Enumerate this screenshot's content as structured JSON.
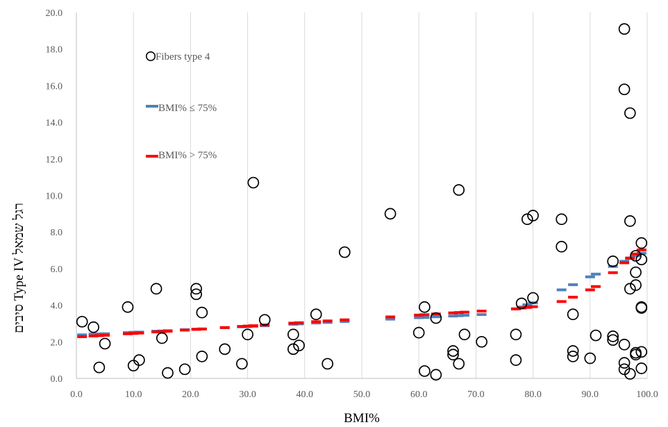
{
  "chart_data": {
    "type": "scatter",
    "xlabel": "BMI%",
    "ylabel": "סיבים  Type IV רגל שמאל",
    "xlim": [
      0,
      100
    ],
    "ylim": [
      0,
      20
    ],
    "x_ticks": [
      "0.0",
      "10.0",
      "20.0",
      "30.0",
      "40.0",
      "50.0",
      "60.0",
      "70.0",
      "80.0",
      "90.0",
      "100.0"
    ],
    "y_ticks": [
      "0.0",
      "2.0",
      "4.0",
      "6.0",
      "8.0",
      "10.0",
      "12.0",
      "14.0",
      "16.0",
      "18.0",
      "20.0"
    ],
    "grid": "vertical",
    "legend_position": "top-left",
    "colors": {
      "points": "#000000",
      "series_le75": "#4f81bd",
      "series_gt75": "#ff0000",
      "grid": "#d9d9d9"
    },
    "series": [
      {
        "name": "Fibers type 4",
        "kind": "scatter",
        "points": [
          [
            1,
            3.1
          ],
          [
            3,
            2.8
          ],
          [
            4,
            0.6
          ],
          [
            5,
            1.9
          ],
          [
            9,
            3.9
          ],
          [
            10,
            0.7
          ],
          [
            11,
            1.0
          ],
          [
            14,
            4.9
          ],
          [
            15,
            2.2
          ],
          [
            16,
            0.3
          ],
          [
            19,
            0.5
          ],
          [
            21,
            4.9
          ],
          [
            21,
            4.6
          ],
          [
            22,
            3.6
          ],
          [
            22,
            1.2
          ],
          [
            26,
            1.6
          ],
          [
            29,
            0.8
          ],
          [
            30,
            2.4
          ],
          [
            31,
            10.7
          ],
          [
            33,
            3.2
          ],
          [
            38,
            2.4
          ],
          [
            38,
            1.6
          ],
          [
            39,
            1.8
          ],
          [
            42,
            3.5
          ],
          [
            44,
            0.8
          ],
          [
            47,
            6.9
          ],
          [
            55,
            9.0
          ],
          [
            60,
            2.5
          ],
          [
            61,
            3.9
          ],
          [
            61,
            0.4
          ],
          [
            63,
            3.3
          ],
          [
            63,
            0.2
          ],
          [
            66,
            1.5
          ],
          [
            66,
            1.3
          ],
          [
            67,
            10.3
          ],
          [
            67,
            0.8
          ],
          [
            68,
            2.4
          ],
          [
            71,
            2.0
          ],
          [
            77,
            2.4
          ],
          [
            77,
            1.0
          ],
          [
            78,
            4.1
          ],
          [
            79,
            8.7
          ],
          [
            80,
            8.9
          ],
          [
            80,
            4.4
          ],
          [
            85,
            8.7
          ],
          [
            85,
            7.2
          ],
          [
            87,
            3.5
          ],
          [
            87,
            1.5
          ],
          [
            87,
            1.2
          ],
          [
            90,
            1.1
          ],
          [
            91,
            2.35
          ],
          [
            94,
            6.4
          ],
          [
            94,
            2.3
          ],
          [
            94,
            2.1
          ],
          [
            96,
            19.1
          ],
          [
            96,
            15.8
          ],
          [
            96,
            1.85
          ],
          [
            96,
            0.85
          ],
          [
            96,
            0.5
          ],
          [
            97,
            14.5
          ],
          [
            97,
            8.6
          ],
          [
            97,
            4.9
          ],
          [
            97,
            0.25
          ],
          [
            98,
            6.7
          ],
          [
            98,
            5.8
          ],
          [
            98,
            5.1
          ],
          [
            98,
            1.4
          ],
          [
            98,
            1.3
          ],
          [
            99,
            7.4
          ],
          [
            99,
            6.5
          ],
          [
            99,
            3.9
          ],
          [
            99,
            3.85
          ],
          [
            99,
            1.45
          ],
          [
            99,
            0.55
          ]
        ]
      },
      {
        "name": "BMI% ≤ 75%",
        "kind": "trend",
        "points": [
          [
            1,
            2.38
          ],
          [
            3,
            2.42
          ],
          [
            4,
            2.43
          ],
          [
            5,
            2.44
          ],
          [
            9,
            2.5
          ],
          [
            10,
            2.52
          ],
          [
            11,
            2.53
          ],
          [
            14,
            2.58
          ],
          [
            15,
            2.59
          ],
          [
            16,
            2.61
          ],
          [
            19,
            2.66
          ],
          [
            21,
            2.69
          ],
          [
            22,
            2.7
          ],
          [
            26,
            2.77
          ],
          [
            29,
            2.82
          ],
          [
            30,
            2.83
          ],
          [
            31,
            2.85
          ],
          [
            33,
            2.88
          ],
          [
            38,
            2.96
          ],
          [
            39,
            2.98
          ],
          [
            42,
            3.03
          ],
          [
            44,
            3.06
          ],
          [
            47,
            3.11
          ],
          [
            55,
            3.24
          ],
          [
            60,
            3.32
          ],
          [
            61,
            3.33
          ],
          [
            63,
            3.37
          ],
          [
            66,
            3.41
          ],
          [
            67,
            3.43
          ],
          [
            68,
            3.45
          ],
          [
            71,
            3.49
          ],
          [
            77,
            3.8
          ],
          [
            78,
            3.9
          ],
          [
            79,
            4.02
          ],
          [
            80,
            4.13
          ],
          [
            85,
            4.84
          ],
          [
            87,
            5.12
          ],
          [
            90,
            5.55
          ],
          [
            91,
            5.7
          ],
          [
            94,
            6.12
          ],
          [
            96,
            6.4
          ],
          [
            97,
            6.55
          ],
          [
            98,
            6.7
          ],
          [
            99,
            6.84
          ]
        ]
      },
      {
        "name": "BMI% > 75%",
        "kind": "trend",
        "points": [
          [
            1,
            2.28
          ],
          [
            3,
            2.32
          ],
          [
            4,
            2.34
          ],
          [
            5,
            2.36
          ],
          [
            9,
            2.44
          ],
          [
            10,
            2.46
          ],
          [
            11,
            2.48
          ],
          [
            14,
            2.54
          ],
          [
            15,
            2.56
          ],
          [
            16,
            2.58
          ],
          [
            19,
            2.64
          ],
          [
            21,
            2.68
          ],
          [
            22,
            2.7
          ],
          [
            26,
            2.78
          ],
          [
            29,
            2.84
          ],
          [
            30,
            2.86
          ],
          [
            31,
            2.88
          ],
          [
            33,
            2.92
          ],
          [
            38,
            3.02
          ],
          [
            39,
            3.04
          ],
          [
            42,
            3.1
          ],
          [
            44,
            3.14
          ],
          [
            47,
            3.2
          ],
          [
            55,
            3.36
          ],
          [
            60,
            3.46
          ],
          [
            61,
            3.48
          ],
          [
            63,
            3.52
          ],
          [
            66,
            3.58
          ],
          [
            67,
            3.6
          ],
          [
            68,
            3.62
          ],
          [
            71,
            3.68
          ],
          [
            77,
            3.8
          ],
          [
            78,
            3.85
          ],
          [
            79,
            3.88
          ],
          [
            80,
            3.92
          ],
          [
            85,
            4.2
          ],
          [
            87,
            4.44
          ],
          [
            90,
            4.84
          ],
          [
            91,
            5.02
          ],
          [
            94,
            5.78
          ],
          [
            96,
            6.32
          ],
          [
            97,
            6.58
          ],
          [
            98,
            6.8
          ],
          [
            99,
            7.02
          ]
        ]
      }
    ]
  }
}
